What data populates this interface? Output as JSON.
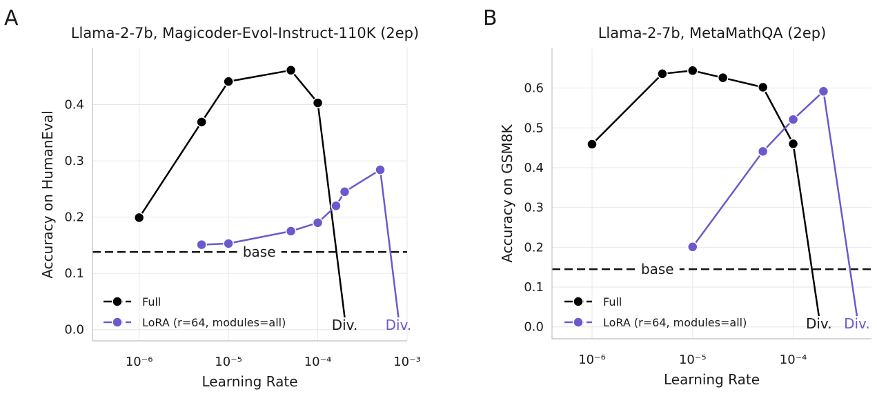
{
  "chart_data": [
    {
      "panel_letter": "A",
      "type": "line",
      "title": "Llama-2-7b, Magicoder-Evol-Instruct-110K (2ep)",
      "xlabel": "Learning Rate",
      "ylabel": "Accuracy on HumanEval",
      "xscale": "log",
      "xlim": [
        3e-07,
        0.001
      ],
      "ylim": [
        -0.02,
        0.5
      ],
      "x_ticks": [
        1e-06,
        1e-05,
        0.0001,
        0.001
      ],
      "x_tick_labels": [
        "10⁻⁶",
        "10⁻⁵",
        "10⁻⁴",
        "10⁻³"
      ],
      "y_ticks": [
        0.0,
        0.1,
        0.2,
        0.3,
        0.4
      ],
      "y_tick_labels": [
        "0.0",
        "0.1",
        "0.2",
        "0.3",
        "0.4"
      ],
      "baseline": {
        "label": "base",
        "value": 0.138
      },
      "legend_position": "bottom-left",
      "series": [
        {
          "name": "Full",
          "color": "#000000",
          "x": [
            1e-06,
            5e-06,
            1e-05,
            5e-05,
            0.0001
          ],
          "y": [
            0.199,
            0.369,
            0.441,
            0.461,
            0.403
          ],
          "diverged_at": 0.0002,
          "diverged_label": "Div."
        },
        {
          "name": "LoRA (r=64, modules=all)",
          "color": "#6a5acd",
          "x": [
            5e-06,
            1e-05,
            5e-05,
            0.0001,
            0.00016,
            0.0002,
            0.0005
          ],
          "y": [
            0.151,
            0.153,
            0.175,
            0.19,
            0.22,
            0.245,
            0.284
          ],
          "diverged_at": 0.0008,
          "diverged_label": "Div."
        }
      ]
    },
    {
      "panel_letter": "B",
      "type": "line",
      "title": "Llama-2-7b, MetaMathQA (2ep)",
      "xlabel": "Learning Rate",
      "ylabel": "Accuracy on GSM8K",
      "xscale": "log",
      "xlim": [
        4e-07,
        0.0006
      ],
      "ylim": [
        -0.03,
        0.7
      ],
      "x_ticks": [
        1e-06,
        1e-05,
        0.0001
      ],
      "x_tick_labels": [
        "10⁻⁶",
        "10⁻⁵",
        "10⁻⁴"
      ],
      "y_ticks": [
        0.0,
        0.1,
        0.2,
        0.3,
        0.4,
        0.5,
        0.6
      ],
      "y_tick_labels": [
        "0.0",
        "0.1",
        "0.2",
        "0.3",
        "0.4",
        "0.5",
        "0.6"
      ],
      "baseline": {
        "label": "base",
        "value": 0.145
      },
      "legend_position": "bottom-left",
      "series": [
        {
          "name": "Full",
          "color": "#000000",
          "x": [
            1e-06,
            5e-06,
            1e-05,
            2e-05,
            5e-05,
            0.0001
          ],
          "y": [
            0.459,
            0.636,
            0.644,
            0.626,
            0.602,
            0.46
          ],
          "diverged_at": 0.00018,
          "diverged_label": "Div."
        },
        {
          "name": "LoRA (r=64, modules=all)",
          "color": "#6a5acd",
          "x": [
            1e-05,
            5e-05,
            0.0001,
            0.0002
          ],
          "y": [
            0.201,
            0.441,
            0.521,
            0.592
          ],
          "diverged_at": 0.00043,
          "diverged_label": "Div."
        }
      ]
    }
  ]
}
